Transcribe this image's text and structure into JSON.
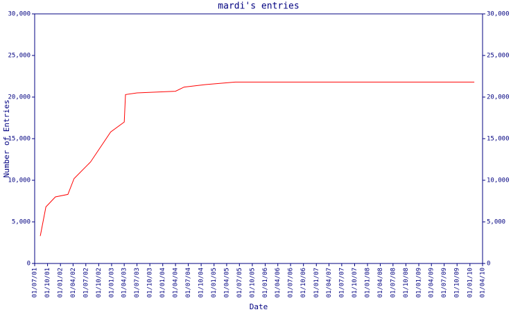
{
  "chart_data": {
    "type": "line",
    "title": "mardi's entries",
    "x_label": "Date",
    "y_label": "Number of Entries",
    "x": [
      "10/08/01",
      "19/09/01",
      "26/11/01",
      "23/02/02",
      "08/04/02",
      "04/08/02",
      "25/12/02",
      "01/04/03",
      "10/04/03",
      "01/07/03",
      "01/04/04",
      "01/06/04",
      "01/11/04",
      "01/06/05",
      "01/02/10"
    ],
    "values": [
      3300,
      6800,
      8000,
      8300,
      10200,
      12200,
      15800,
      17000,
      20300,
      20500,
      20700,
      21200,
      21500,
      21800,
      21800
    ],
    "color": "#ff0000",
    "xlim": [
      "01/07/01",
      "01/04/10"
    ],
    "xticks": [
      "01/07/01",
      "01/10/01",
      "01/01/02",
      "01/04/02",
      "01/07/02",
      "01/10/02",
      "01/01/03",
      "01/04/03",
      "01/07/03",
      "01/10/03",
      "01/01/04",
      "01/04/04",
      "01/07/04",
      "01/10/04",
      "01/01/05",
      "01/04/05",
      "01/07/05",
      "01/10/05",
      "01/01/06",
      "01/04/06",
      "01/07/06",
      "01/10/06",
      "01/01/07",
      "01/04/07",
      "01/07/07",
      "01/10/07",
      "01/01/08",
      "01/04/08",
      "01/07/08",
      "01/10/08",
      "01/01/09",
      "01/04/09",
      "01/07/09",
      "01/10/09",
      "01/01/10",
      "01/04/10"
    ],
    "ylim": [
      0,
      30000
    ],
    "yticks": [
      0,
      {
        "value": 5000,
        "label": "5,000"
      },
      {
        "value": 10000,
        "label": "10,000"
      },
      {
        "value": 15000,
        "label": "15,000"
      },
      {
        "value": 20000,
        "label": "20,000"
      },
      {
        "value": 25000,
        "label": "25,000"
      },
      {
        "value": 30000,
        "label": "30,000"
      }
    ]
  }
}
